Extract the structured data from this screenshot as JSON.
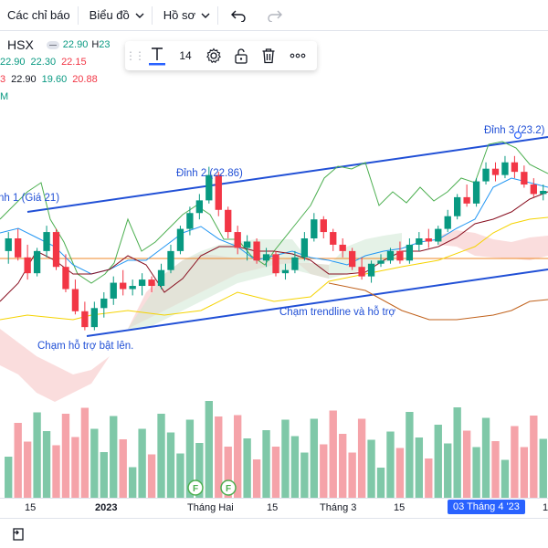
{
  "toolbar": {
    "indicators_label": "Các chỉ báo",
    "chart_label": "Biểu đồ",
    "profile_label": "Hồ sơ",
    "undo_icon": "undo-icon",
    "redo_icon": "redo-icon"
  },
  "legend": {
    "symbol": "HSX",
    "row1": {
      "v1": "22.90",
      "h_label": "H",
      "v2": "23"
    },
    "row2": {
      "a": "22.90",
      "b": "22.30",
      "c": "22.15"
    },
    "row3": {
      "prefix": "3",
      "a": "22.90",
      "b": "19.60",
      "c": "20.88"
    },
    "row4": {
      "label": "M"
    },
    "colors": {
      "green": "#089981",
      "red": "#f23645",
      "purple": "#9c27b0"
    }
  },
  "text_toolbar": {
    "text_icon": "text-tool-icon",
    "font_size": "14",
    "settings_icon": "gear-icon",
    "lock_icon": "unlock-icon",
    "delete_icon": "trash-icon",
    "more_icon": "more-icon"
  },
  "annotations": {
    "peak1": "nh 1 (Giá 21)",
    "peak2": "Đỉnh 2 (22.86)",
    "peak3": "Đỉnh 3 (23.2)",
    "support1": "Chạm hỗ trợ bật lên.",
    "support2": "Chạm trendline và hỗ trợ"
  },
  "markers": [
    "F",
    "F"
  ],
  "xaxis": {
    "labels": [
      "15",
      "2023",
      "Tháng Hai",
      "15",
      "Tháng 3",
      "15",
      "03 Tháng 4 '23",
      "1"
    ]
  },
  "chart_data": {
    "type": "candlestick",
    "series": [
      {
        "name": "price",
        "values": [
          [
            20.2,
            20.8,
            19.8,
            20.6
          ],
          [
            20.6,
            20.9,
            19.9,
            20.0
          ],
          [
            20.0,
            20.4,
            19.3,
            19.5
          ],
          [
            19.5,
            20.3,
            19.4,
            20.2
          ],
          [
            20.2,
            21.0,
            20.0,
            20.8
          ],
          [
            20.8,
            20.9,
            19.6,
            19.7
          ],
          [
            19.7,
            20.1,
            18.9,
            19.0
          ],
          [
            19.0,
            19.3,
            18.2,
            18.3
          ],
          [
            18.3,
            18.6,
            17.7,
            17.8
          ],
          [
            17.8,
            18.6,
            17.7,
            18.4
          ],
          [
            18.4,
            18.9,
            18.1,
            18.7
          ],
          [
            18.7,
            19.4,
            18.5,
            19.2
          ],
          [
            19.2,
            19.6,
            18.8,
            19.0
          ],
          [
            19.0,
            19.3,
            18.8,
            19.1
          ],
          [
            19.1,
            19.5,
            18.8,
            19.3
          ],
          [
            19.3,
            19.4,
            18.9,
            19.1
          ],
          [
            19.1,
            19.8,
            19.0,
            19.6
          ],
          [
            19.6,
            20.4,
            19.5,
            20.2
          ],
          [
            20.2,
            21.0,
            20.1,
            20.9
          ],
          [
            20.9,
            21.6,
            20.7,
            21.4
          ],
          [
            21.4,
            22.0,
            21.2,
            21.8
          ],
          [
            21.8,
            22.86,
            21.7,
            22.6
          ],
          [
            22.6,
            22.7,
            21.3,
            21.5
          ],
          [
            21.5,
            21.6,
            20.6,
            20.8
          ],
          [
            20.8,
            21.0,
            20.1,
            20.3
          ],
          [
            20.3,
            20.7,
            19.9,
            20.5
          ],
          [
            20.5,
            20.6,
            19.8,
            19.9
          ],
          [
            19.9,
            20.3,
            19.7,
            20.1
          ],
          [
            20.1,
            20.2,
            19.4,
            19.5
          ],
          [
            19.5,
            19.8,
            19.3,
            19.6
          ],
          [
            19.6,
            20.2,
            19.5,
            20.0
          ],
          [
            20.0,
            20.8,
            19.9,
            20.6
          ],
          [
            20.6,
            21.4,
            20.5,
            21.2
          ],
          [
            21.2,
            21.3,
            20.6,
            20.8
          ],
          [
            20.8,
            20.9,
            20.2,
            20.4
          ],
          [
            20.4,
            20.6,
            20.0,
            20.2
          ],
          [
            20.2,
            20.3,
            19.6,
            19.7
          ],
          [
            19.7,
            20.0,
            19.3,
            19.4
          ],
          [
            19.4,
            19.9,
            19.2,
            19.8
          ],
          [
            19.8,
            20.1,
            19.7,
            19.9
          ],
          [
            19.9,
            20.3,
            19.8,
            20.2
          ],
          [
            20.2,
            20.5,
            19.8,
            19.9
          ],
          [
            19.9,
            20.6,
            19.8,
            20.4
          ],
          [
            20.4,
            20.8,
            20.2,
            20.6
          ],
          [
            20.6,
            20.9,
            20.3,
            20.5
          ],
          [
            20.5,
            21.0,
            20.4,
            20.9
          ],
          [
            20.9,
            21.5,
            20.8,
            21.3
          ],
          [
            21.3,
            22.0,
            21.2,
            21.9
          ],
          [
            21.9,
            22.3,
            21.6,
            21.7
          ],
          [
            21.7,
            22.5,
            21.6,
            22.4
          ],
          [
            22.4,
            23.0,
            22.3,
            22.8
          ],
          [
            22.8,
            23.0,
            22.4,
            22.6
          ],
          [
            22.6,
            23.2,
            22.5,
            23.0
          ],
          [
            23.0,
            23.2,
            22.5,
            22.7
          ],
          [
            22.7,
            22.9,
            22.2,
            22.3
          ],
          [
            22.3,
            22.5,
            21.9,
            22.0
          ],
          [
            22.0,
            22.3,
            21.8,
            22.1
          ]
        ]
      }
    ]
  }
}
